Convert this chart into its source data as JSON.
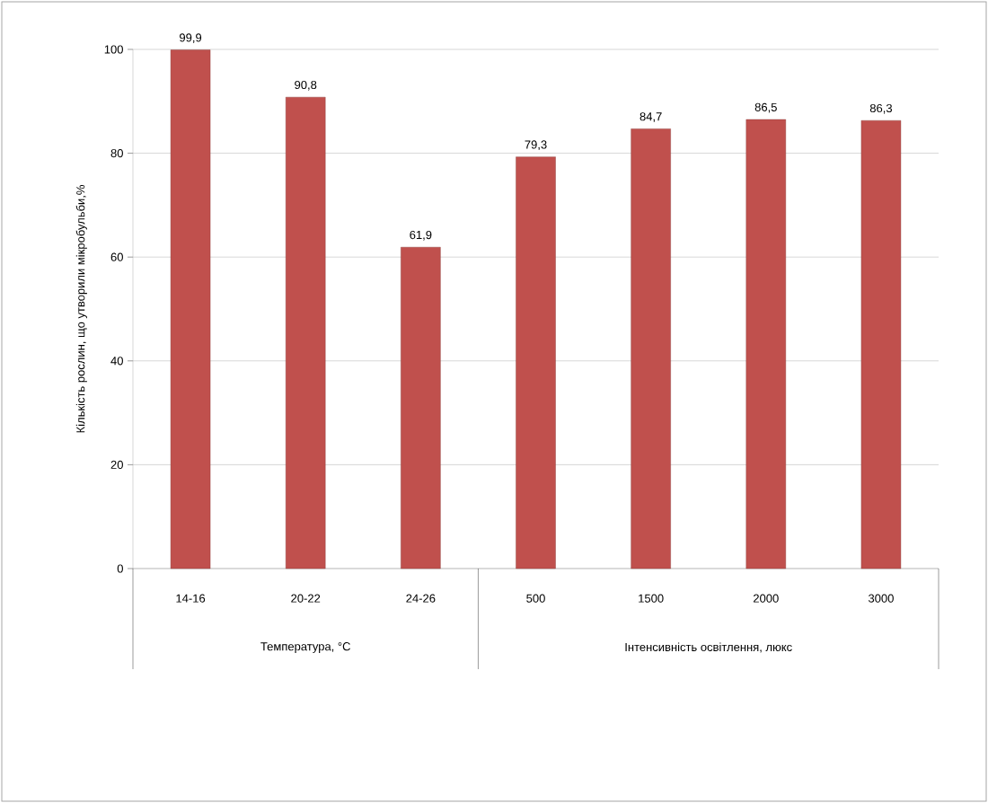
{
  "chart_data": {
    "type": "bar",
    "ylabel": "Кількість рослин, що утворили мікробульби,%",
    "categories": [
      "14-16",
      "20-22",
      "24-26",
      "500",
      "1500",
      "2000",
      "3000"
    ],
    "values": [
      99.9,
      90.8,
      61.9,
      79.3,
      84.7,
      86.5,
      86.3
    ],
    "value_labels": [
      "99,9",
      "90,8",
      "61,9",
      "79,3",
      "84,7",
      "86,5",
      "86,3"
    ],
    "color": "#c0504d",
    "ylim": [
      0,
      100
    ],
    "yticks": [
      0,
      20,
      40,
      60,
      80,
      100
    ],
    "grid": "y",
    "annotations": [
      "Температура, °C",
      "Інтенсивність освітлення, люкс"
    ]
  }
}
